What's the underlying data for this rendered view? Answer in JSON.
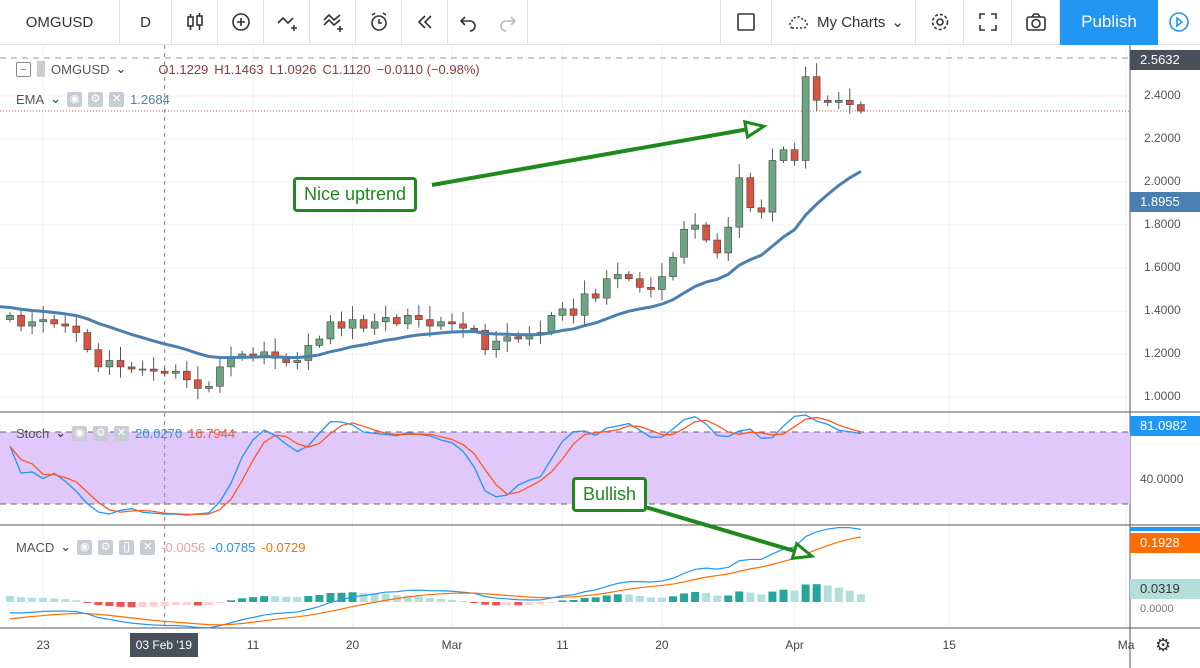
{
  "toolbar": {
    "symbol": "OMGUSD",
    "interval": "D",
    "my_charts": "My Charts",
    "publish": "Publish",
    "icons": [
      "candles-icon",
      "add-circle-icon",
      "indicators-icon",
      "compare-icon",
      "alert-icon",
      "replay-icon",
      "undo-icon",
      "redo-icon"
    ]
  },
  "legend": {
    "symbol": "OMGUSD",
    "open": "O1.1229",
    "high": "H1.1463",
    "low": "L1.0926",
    "close": "C1.1120",
    "change": "−0.0110 (−0.98%)",
    "ema_label": "EMA",
    "ema_value": "1.2684",
    "stoch_label": "Stoch",
    "stoch_k": "20.0270",
    "stoch_d": "16.7944",
    "macd_label": "MACD",
    "macd_hist": "-0.0056",
    "macd_line": "-0.0785",
    "macd_signal": "-0.0729"
  },
  "price_axis": {
    "ticks": [
      "2.4000",
      "2.2000",
      "2.0000",
      "1.8000",
      "1.6000",
      "1.4000",
      "1.2000",
      "1.0000"
    ],
    "crosshair": "2.5632",
    "ema_badge": "1.8955",
    "stoch_tick": "40.0000",
    "stoch_badge": "81.0982",
    "macd_badge": "0.1928",
    "macd_hist_badge": "0.0319",
    "macd_zero": "0.0000"
  },
  "time_axis": {
    "ticks": [
      {
        "label": "23",
        "day": 3
      },
      {
        "label": "11",
        "day": 22
      },
      {
        "label": "20",
        "day": 31
      },
      {
        "label": "Mar",
        "day": 40
      },
      {
        "label": "11",
        "day": 50
      },
      {
        "label": "20",
        "day": 59
      },
      {
        "label": "Apr",
        "day": 71
      },
      {
        "label": "15",
        "day": 85
      },
      {
        "label": "Ma",
        "day": 101
      }
    ],
    "crosshair_label": "03 Feb '19",
    "crosshair_day": 14
  },
  "annotations": {
    "uptrend": "Nice uptrend",
    "bullish": "Bullish"
  },
  "colors": {
    "up": "#6ba583",
    "down": "#d75442",
    "ema": "#4a7fb0",
    "stoch_k": "#2196f3",
    "stoch_d": "#ff5722",
    "band": "#e1c8fb",
    "publish": "#2196f3",
    "annot": "#1e8a1e"
  },
  "chart_data": {
    "type": "candlestick",
    "start": "Jan 20 2019",
    "first_open": 1.36,
    "closes": [
      1.38,
      1.33,
      1.35,
      1.36,
      1.34,
      1.33,
      1.3,
      1.22,
      1.14,
      1.17,
      1.14,
      1.13,
      1.13,
      1.12,
      1.11,
      1.12,
      1.08,
      1.04,
      1.05,
      1.14,
      1.18,
      1.2,
      1.19,
      1.21,
      1.18,
      1.16,
      1.17,
      1.24,
      1.27,
      1.35,
      1.32,
      1.36,
      1.32,
      1.35,
      1.37,
      1.34,
      1.38,
      1.36,
      1.33,
      1.35,
      1.34,
      1.32,
      1.31,
      1.22,
      1.26,
      1.28,
      1.27,
      1.29,
      1.3,
      1.38,
      1.41,
      1.38,
      1.48,
      1.46,
      1.55,
      1.57,
      1.55,
      1.51,
      1.5,
      1.56,
      1.65,
      1.78,
      1.8,
      1.73,
      1.67,
      1.79,
      2.02,
      1.88,
      1.86,
      2.1,
      2.15,
      2.1,
      2.49,
      2.38,
      2.37,
      2.38,
      2.36,
      2.33
    ],
    "ylim": [
      0.92,
      2.6
    ]
  }
}
